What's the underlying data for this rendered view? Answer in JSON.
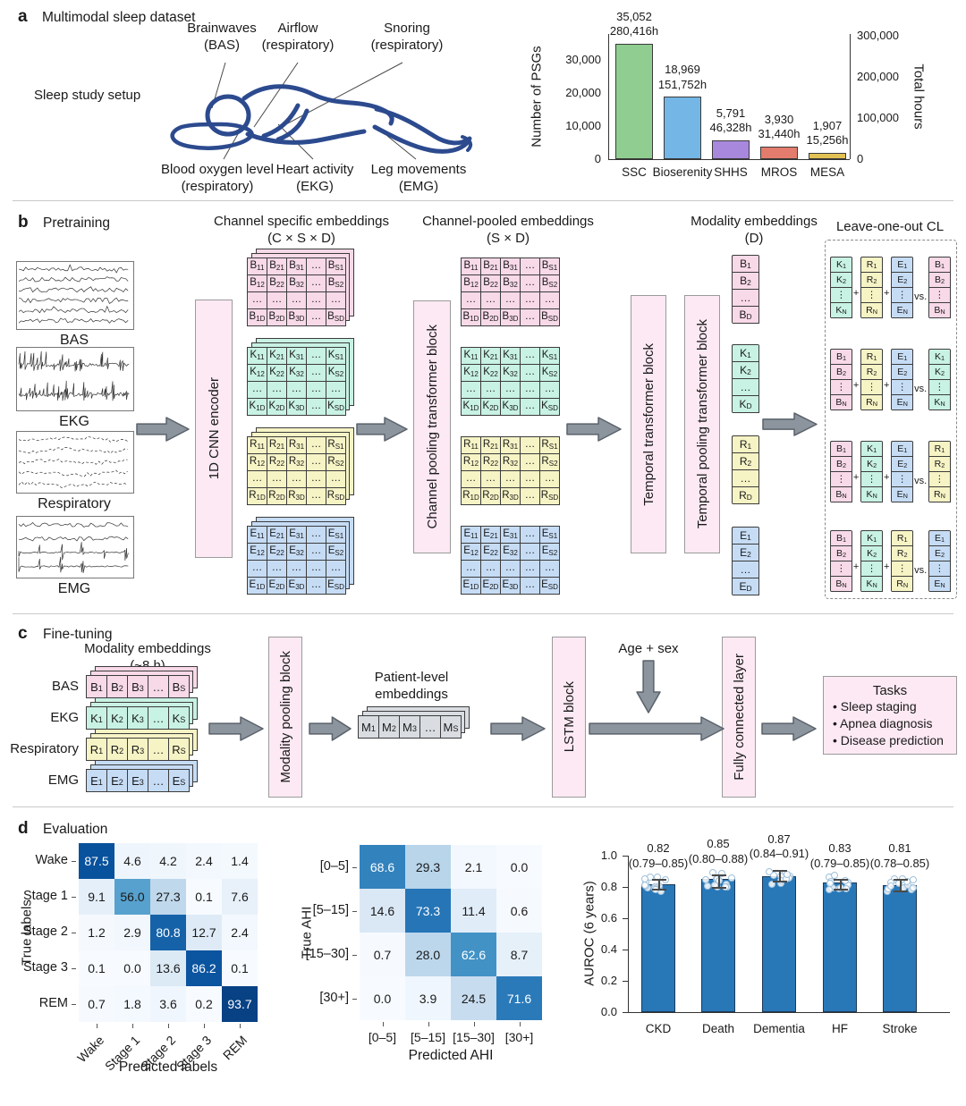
{
  "panel_a": {
    "letter": "a",
    "title": "Multimodal sleep dataset",
    "setup_label": "Sleep study setup",
    "annotations": [
      {
        "line1": "Brainwaves",
        "line2": "(BAS)"
      },
      {
        "line1": "Airflow",
        "line2": "(respiratory)"
      },
      {
        "line1": "Snoring",
        "line2": "(respiratory)"
      },
      {
        "line1": "Blood oxygen level",
        "line2": "(respiratory)"
      },
      {
        "line1": "Heart activity",
        "line2": "(EKG)"
      },
      {
        "line1": "Leg movements",
        "line2": "(EMG)"
      }
    ]
  },
  "panel_b": {
    "letter": "b",
    "title": "Pretraining",
    "signals": [
      {
        "label": "BAS",
        "kind": "eeg"
      },
      {
        "label": "EKG",
        "kind": "ekg"
      },
      {
        "label": "Respiratory",
        "kind": "resp"
      },
      {
        "label": "EMG",
        "kind": "emg"
      }
    ],
    "encoder_label": "1D CNN encoder",
    "channel_specific": {
      "title": "Channel specific embeddings",
      "subtitle": "(C × S × D)"
    },
    "channel_pool_block": "Channel pooling transformer block",
    "channel_pooled": {
      "title": "Channel-pooled embeddings",
      "subtitle": "(S × D)"
    },
    "temporal_block": "Temporal transformer block",
    "temporal_pool_block": "Temporal pooling transformer block",
    "modality_emb": {
      "title": "Modality embeddings",
      "subtitle": "(D)"
    },
    "cl_title": "Leave-one-out CL",
    "modalities": [
      {
        "letter": "B",
        "color": "#f8d9e8"
      },
      {
        "letter": "K",
        "color": "#c8f2e3"
      },
      {
        "letter": "R",
        "color": "#f6f3c5"
      },
      {
        "letter": "E",
        "color": "#c6dcf5"
      }
    ],
    "matrix_cols": [
      "1",
      "2",
      "3",
      "…",
      "S"
    ],
    "matrix_rows": [
      "1",
      "2",
      "…",
      "D"
    ],
    "vector_subs": [
      "1",
      "2",
      "…",
      "D"
    ],
    "cl_subs": [
      "1",
      "2",
      "⋮",
      "N"
    ],
    "cl_groups": [
      [
        "K",
        "R",
        "E",
        "B"
      ],
      [
        "B",
        "R",
        "E",
        "K"
      ],
      [
        "B",
        "K",
        "E",
        "R"
      ],
      [
        "B",
        "K",
        "R",
        "E"
      ]
    ],
    "plus": "+",
    "vs": "vs."
  },
  "panel_c": {
    "letter": "c",
    "title": "Fine-tuning",
    "emb_title": "Modality embeddings",
    "emb_subtitle": "(~8 h)",
    "rows": [
      {
        "label": "BAS",
        "letter": "B"
      },
      {
        "label": "EKG",
        "letter": "K"
      },
      {
        "label": "Respiratory",
        "letter": "R"
      },
      {
        "label": "EMG",
        "letter": "E"
      }
    ],
    "row_subs": [
      "1",
      "2",
      "3",
      "…",
      "S"
    ],
    "modality_pooling_block": "Modality pooling block",
    "patient_title_line1": "Patient-level",
    "patient_title_line2": "embeddings",
    "patient_letter": "M",
    "patient_color": "#d9dde2",
    "lstm_block": "LSTM block",
    "age_sex": "Age + sex",
    "fc_block": "Fully connected layer",
    "tasks": {
      "title": "Tasks",
      "bullet": "•",
      "items": [
        "Sleep staging",
        "Apnea diagnosis",
        "Disease prediction"
      ]
    }
  },
  "panel_d": {
    "letter": "d",
    "title": "Evaluation"
  },
  "chart_data": [
    {
      "id": "psg_counts",
      "type": "bar",
      "categories": [
        "SSC",
        "Bioserenity",
        "SHHS",
        "MROS",
        "MESA"
      ],
      "values": [
        35052,
        18969,
        5791,
        3930,
        1907
      ],
      "value_labels": [
        "35,052",
        "18,969",
        "5,791",
        "3,930",
        "1,907"
      ],
      "total_hours": [
        280416,
        151752,
        46328,
        31440,
        15256
      ],
      "hours_labels": [
        "280,416h",
        "151,752h",
        "46,328h",
        "31,440h",
        "15,256h"
      ],
      "bar_colors": [
        "#8fce90",
        "#74b7e6",
        "#a888dd",
        "#e37c6c",
        "#e2c254"
      ],
      "ylabel_left": "Number of PSGs",
      "ylabel_right": "Total hours",
      "yticks_left": {
        "values": [
          0,
          10000,
          20000,
          30000
        ],
        "labels": [
          "0",
          "10,000",
          "20,000",
          "30,000"
        ]
      },
      "yticks_right": {
        "values": [
          0,
          100000,
          200000,
          300000
        ],
        "labels": [
          "0",
          "100,000",
          "200,000",
          "300,000"
        ]
      },
      "ylim_left": [
        0,
        38000
      ],
      "hours_per_psg": 8,
      "legend": "none",
      "grid": false
    },
    {
      "id": "sleep_staging_confusion",
      "type": "heatmap",
      "row_labels": [
        "Wake",
        "Stage 1",
        "Stage 2",
        "Stage 3",
        "REM"
      ],
      "col_labels": [
        "Wake",
        "Stage 1",
        "Stage 2",
        "Stage 3",
        "REM"
      ],
      "values": [
        [
          87.5,
          4.6,
          4.2,
          2.4,
          1.4
        ],
        [
          9.1,
          56.0,
          27.3,
          0.1,
          7.6
        ],
        [
          1.2,
          2.9,
          80.8,
          12.7,
          2.4
        ],
        [
          0.1,
          0.0,
          13.6,
          86.2,
          0.1
        ],
        [
          0.7,
          1.8,
          3.6,
          0.2,
          93.7
        ]
      ],
      "xlabel": "Predicted labels",
      "ylabel": "True labels",
      "colormap": "Blues",
      "vmin": 0,
      "vmax": 100
    },
    {
      "id": "ahi_confusion",
      "type": "heatmap",
      "row_labels": [
        "[0–5]",
        "[5–15]",
        "[15–30]",
        "[30+]"
      ],
      "col_labels": [
        "[0–5]",
        "[5–15]",
        "[15–30]",
        "[30+]"
      ],
      "values": [
        [
          68.6,
          29.3,
          2.1,
          0.0
        ],
        [
          14.6,
          73.3,
          11.4,
          0.6
        ],
        [
          0.7,
          28.0,
          62.6,
          8.7
        ],
        [
          0.0,
          3.9,
          24.5,
          71.6
        ]
      ],
      "xlabel": "Predicted AHI",
      "ylabel": "True AHI",
      "colormap": "Blues",
      "vmin": 0,
      "vmax": 100
    },
    {
      "id": "disease_auroc",
      "type": "bar",
      "categories": [
        "CKD",
        "Death",
        "Dementia",
        "HF",
        "Stroke"
      ],
      "values": [
        0.82,
        0.85,
        0.87,
        0.83,
        0.81
      ],
      "ci": [
        [
          0.79,
          0.85
        ],
        [
          0.8,
          0.88
        ],
        [
          0.84,
          0.91
        ],
        [
          0.79,
          0.85
        ],
        [
          0.78,
          0.85
        ]
      ],
      "value_labels": [
        "0.82",
        "0.85",
        "0.87",
        "0.83",
        "0.81"
      ],
      "ci_labels": [
        "(0.79–0.85)",
        "(0.80–0.88)",
        "(0.84–0.91)",
        "(0.79–0.85)",
        "(0.78–0.85)"
      ],
      "ylabel": "AUROC (6 years)",
      "ylim": [
        0,
        1.0
      ],
      "yticks": {
        "values": [
          0,
          0.2,
          0.4,
          0.6,
          0.8,
          1.0
        ],
        "labels": [
          "0.0",
          "0.2",
          "0.4",
          "0.6",
          "0.8",
          "1.0"
        ]
      },
      "bar_color": "#2878b8",
      "grid": false
    }
  ]
}
